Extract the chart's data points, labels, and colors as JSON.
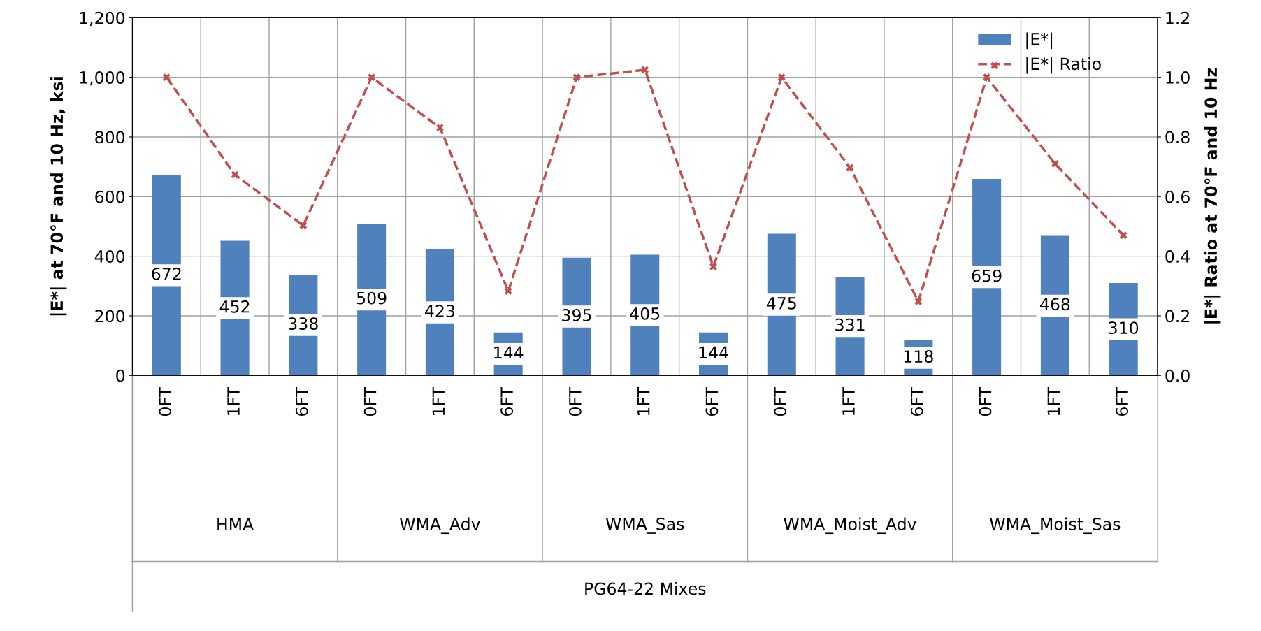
{
  "chart_data": {
    "type": "bar",
    "categories": [
      "0FT",
      "1FT",
      "6FT",
      "0FT",
      "1FT",
      "6FT",
      "0FT",
      "1FT",
      "6FT",
      "0FT",
      "1FT",
      "6FT",
      "0FT",
      "1FT",
      "6FT"
    ],
    "annotations": [
      "HMA",
      "WMA_Adv",
      "WMA_Sas",
      "WMA_Moist_Adv",
      "WMA_Moist_Sas",
      "PG64-22 Mixes"
    ],
    "ylabel": "|E*| at 70°F and 10 Hz, ksi",
    "y2label": "|E*| Ratio at 70°F and 10 Hz",
    "series": [
      {
        "name": "|E*|",
        "color": "#4f81bd",
        "values": [
          672,
          452,
          338,
          509,
          423,
          144,
          395,
          405,
          144,
          475,
          331,
          118,
          659,
          468,
          310
        ],
        "value_labels": [
          "672",
          "452",
          "338",
          "509",
          "423",
          "144",
          "395",
          "405",
          "144",
          "475",
          "331",
          "118",
          "659",
          "468",
          "310"
        ]
      },
      {
        "name": "|E*| Ratio",
        "type": "line",
        "axis": "y2",
        "color": "#c0504d",
        "line_style": "dashed",
        "marker": "cross",
        "values": [
          1.0,
          0.673,
          0.503,
          1.0,
          0.831,
          0.283,
          1.0,
          1.025,
          0.365,
          1.0,
          0.697,
          0.248,
          1.0,
          0.71,
          0.47
        ]
      }
    ],
    "ylim": [
      0,
      1200
    ],
    "yticks": [
      0,
      200,
      400,
      600,
      800,
      {
        "value": 1000,
        "label": "1,000"
      },
      {
        "value": 1200,
        "label": "1,200"
      }
    ],
    "y2lim": [
      0,
      1.2
    ],
    "y2ticks": [
      {
        "value": 0,
        "label": "0.0"
      },
      {
        "value": 0.2,
        "label": "0.2"
      },
      {
        "value": 0.4,
        "label": "0.4"
      },
      {
        "value": 0.6,
        "label": "0.6"
      },
      {
        "value": 0.8,
        "label": "0.8"
      },
      {
        "value": 1.0,
        "label": "1.0"
      },
      {
        "value": 1.2,
        "label": "1.2"
      }
    ],
    "grid": true,
    "legend": "top right"
  }
}
